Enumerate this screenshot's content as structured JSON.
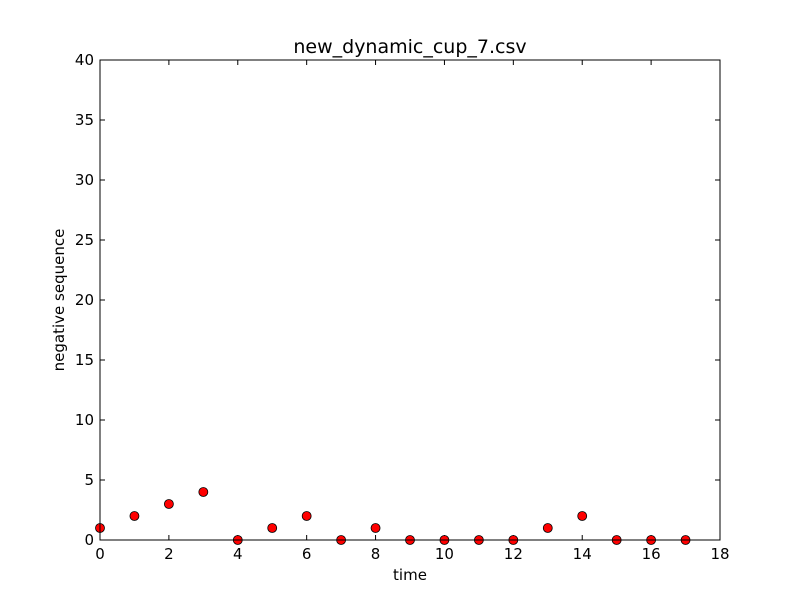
{
  "chart_data": {
    "type": "scatter",
    "title": "new_dynamic_cup_7.csv",
    "xlabel": "time",
    "ylabel": "negative sequence",
    "xlim": [
      0,
      18
    ],
    "ylim": [
      0,
      40
    ],
    "xticks": [
      "0",
      "2",
      "4",
      "6",
      "8",
      "10",
      "12",
      "14",
      "16",
      "18"
    ],
    "yticks": [
      "0",
      "5",
      "10",
      "15",
      "20",
      "25",
      "30",
      "35",
      "40"
    ],
    "grid": false,
    "series": [
      {
        "color": "#ff0000",
        "x": [
          0,
          1,
          2,
          3,
          4,
          5,
          6,
          7,
          8,
          9,
          10,
          11,
          12,
          13,
          14,
          15,
          16,
          17
        ],
        "y": [
          1,
          2,
          3,
          4,
          0,
          1,
          2,
          0,
          1,
          0,
          0,
          0,
          0,
          1,
          2,
          0,
          0,
          0
        ]
      }
    ]
  }
}
